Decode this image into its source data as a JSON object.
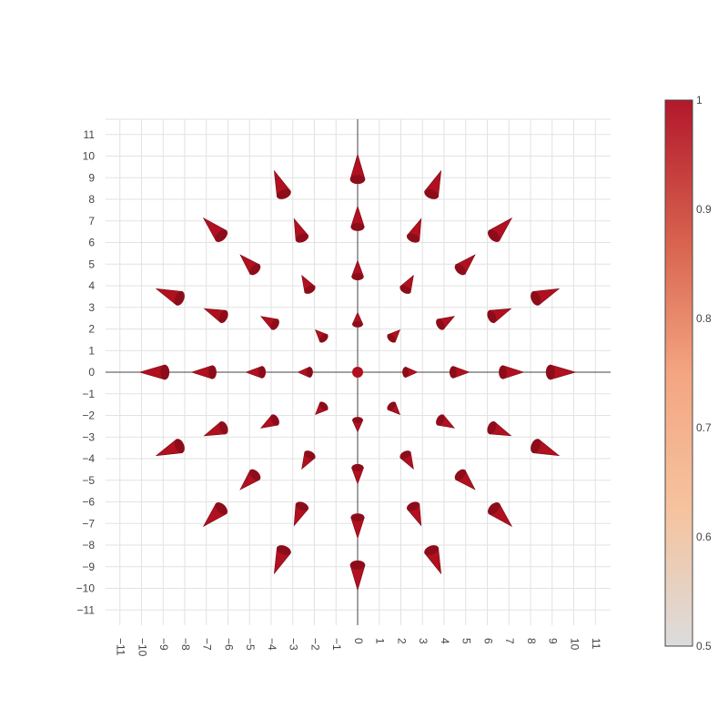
{
  "chart_data": {
    "type": "cone",
    "title": "",
    "xlabel": "",
    "ylabel": "",
    "xlim": [
      -11.5,
      11.5
    ],
    "ylim": [
      -11.5,
      11.5
    ],
    "grid": true,
    "x_ticks": [
      "−11",
      "−10",
      "−9",
      "−8",
      "−7",
      "−6",
      "−5",
      "−4",
      "−3",
      "−2",
      "−1",
      "0",
      "1",
      "2",
      "3",
      "4",
      "5",
      "6",
      "7",
      "8",
      "9",
      "10",
      "11"
    ],
    "y_ticks": [
      "11",
      "10",
      "9",
      "8",
      "7",
      "6",
      "5",
      "4",
      "3",
      "2",
      "1",
      "0",
      "−1",
      "−2",
      "−3",
      "−4",
      "−5",
      "−6",
      "−7",
      "−8",
      "−9",
      "−10",
      "−11"
    ],
    "y_ticks_values": [
      11,
      10,
      9,
      8,
      7,
      6,
      5,
      4,
      3,
      2,
      1,
      0,
      -1,
      -2,
      -3,
      -4,
      -5,
      -6,
      -7,
      -8,
      -9,
      -10,
      -11
    ],
    "x_ticks_values": [
      -11,
      -10,
      -9,
      -8,
      -7,
      -6,
      -5,
      -4,
      -3,
      -2,
      -1,
      0,
      1,
      2,
      3,
      4,
      5,
      6,
      7,
      8,
      9,
      10,
      11
    ],
    "rings": [
      {
        "radius": 0,
        "count": 1,
        "magnitude": 1.0
      },
      {
        "radius": 2.3,
        "count": 8,
        "magnitude": 1.0
      },
      {
        "radius": 4.5,
        "count": 12,
        "magnitude": 1.0
      },
      {
        "radius": 6.8,
        "count": 16,
        "magnitude": 1.0
      },
      {
        "radius": 9.0,
        "count": 16,
        "magnitude": 1.0
      }
    ],
    "colorscale": {
      "min": 0.5,
      "max": 1,
      "ticks": [
        "1",
        "0.9",
        "0.8",
        "0.7",
        "0.6",
        "0.5"
      ],
      "tick_values": [
        1,
        0.9,
        0.8,
        0.7,
        0.6,
        0.5
      ],
      "colors": [
        "#dcdcdc",
        "#f5c39e",
        "#f4a582",
        "#d6604d",
        "#b2182b"
      ]
    },
    "cone_color": "#b0101f",
    "grid_color": "#e2e2e2",
    "zero_line_color": "#444444"
  }
}
